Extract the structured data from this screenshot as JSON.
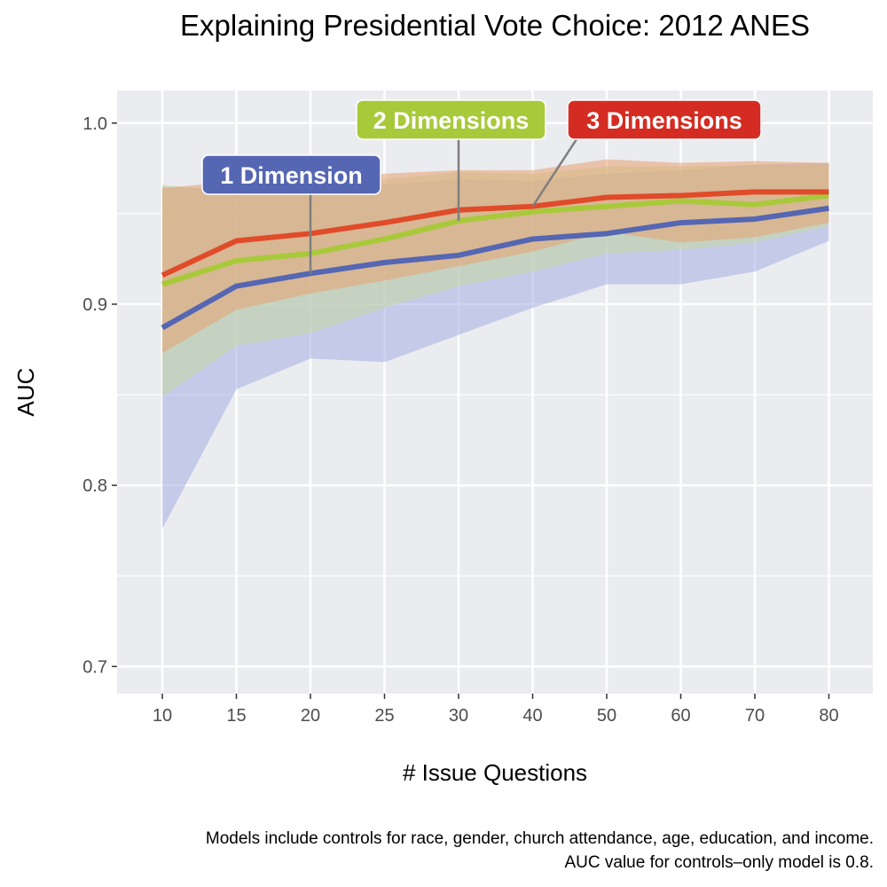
{
  "chart_data": {
    "type": "line",
    "title": "Explaining Presidential Vote Choice: 2012 ANES",
    "xlabel": "# Issue Questions",
    "ylabel": "AUC",
    "categories": [
      "10",
      "15",
      "20",
      "25",
      "30",
      "40",
      "50",
      "60",
      "70",
      "80"
    ],
    "yticks": [
      "0.7",
      "0.8",
      "0.9",
      "1.0"
    ],
    "ylim": [
      0.685,
      1.018
    ],
    "grid": true,
    "series": [
      {
        "name": "1 Dimension",
        "color": "#5566B3",
        "values": [
          0.887,
          0.91,
          0.917,
          0.923,
          0.927,
          0.936,
          0.939,
          0.945,
          0.947,
          0.953
        ],
        "lower": [
          0.776,
          0.853,
          0.87,
          0.868,
          0.883,
          0.898,
          0.911,
          0.911,
          0.918,
          0.935
        ],
        "upper": [
          0.965,
          0.963,
          0.962,
          0.966,
          0.969,
          0.968,
          0.972,
          0.974,
          0.977,
          0.978
        ],
        "label_point": 2
      },
      {
        "name": "2 Dimensions",
        "color": "#A8C93A",
        "values": [
          0.911,
          0.924,
          0.928,
          0.936,
          0.946,
          0.951,
          0.954,
          0.957,
          0.955,
          0.96
        ],
        "lower": [
          0.849,
          0.877,
          0.884,
          0.898,
          0.91,
          0.918,
          0.928,
          0.93,
          0.934,
          0.943
        ],
        "upper": [
          0.966,
          0.962,
          0.962,
          0.969,
          0.973,
          0.972,
          0.976,
          0.976,
          0.977,
          0.977
        ],
        "label_point": 4
      },
      {
        "name": "3 Dimensions",
        "color": "#E04B2A",
        "values": [
          0.916,
          0.935,
          0.939,
          0.945,
          0.952,
          0.954,
          0.959,
          0.96,
          0.962,
          0.962
        ],
        "lower": [
          0.873,
          0.897,
          0.906,
          0.913,
          0.921,
          0.929,
          0.94,
          0.934,
          0.937,
          0.945
        ],
        "upper": [
          0.964,
          0.968,
          0.967,
          0.972,
          0.974,
          0.974,
          0.98,
          0.978,
          0.979,
          0.978
        ],
        "label_point": 5
      }
    ],
    "label_colors": [
      "#5566B3",
      "#A8C93A",
      "#D42C22"
    ],
    "band_colors": [
      "#A6AEE4",
      "#C5D9A0",
      "#E8A070"
    ]
  },
  "caption_lines": [
    "Models include controls for race, gender, church attendance, age, education, and income.",
    "AUC value for controls–only model is 0.8."
  ]
}
